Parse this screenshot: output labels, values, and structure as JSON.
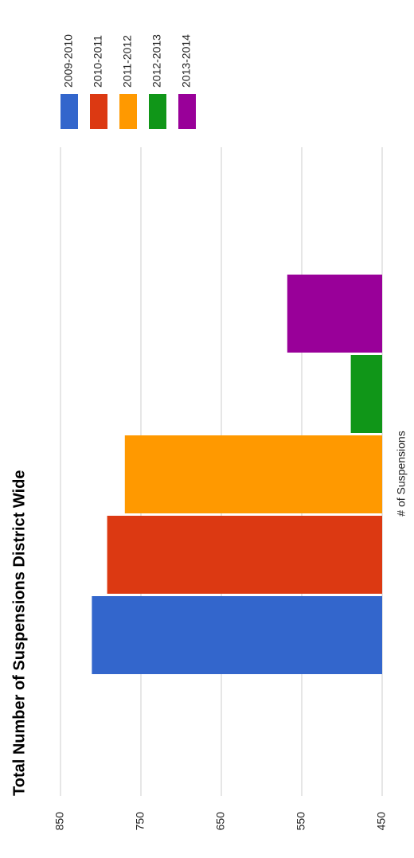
{
  "chart_data": {
    "type": "bar",
    "title": "Total Number of Suspensions District Wide",
    "y_label": "# of Suspensions",
    "series": [
      {
        "name": "2009-2010",
        "color": "#3366cc",
        "values": [
          811
        ]
      },
      {
        "name": "2010-2011",
        "color": "#dc3912",
        "values": [
          792
        ]
      },
      {
        "name": "2011-2012",
        "color": "#ff9900",
        "values": [
          770
        ]
      },
      {
        "name": "2012-2013",
        "color": "#109618",
        "values": [
          489
        ]
      },
      {
        "name": "2013-2014",
        "color": "#990099",
        "values": [
          568
        ]
      }
    ],
    "ylim": [
      450,
      850
    ],
    "yticks": [
      450,
      550,
      650,
      750,
      850
    ],
    "grid": true,
    "legend": "top"
  }
}
